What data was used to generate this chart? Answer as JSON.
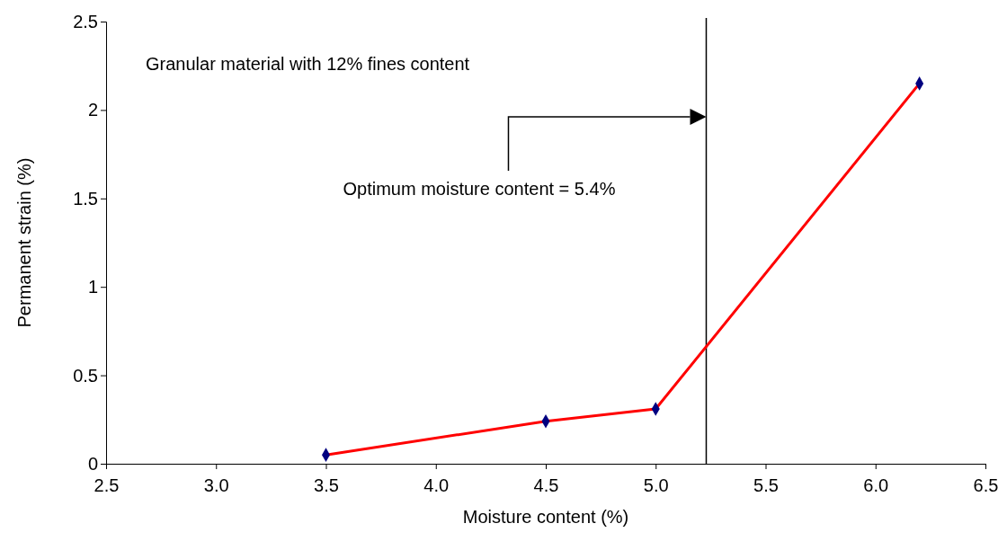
{
  "chart_data": {
    "type": "line",
    "xlabel": "Moisture content (%)",
    "ylabel": "Permanent strain (%)",
    "x": [
      3.5,
      4.5,
      5.0,
      6.2
    ],
    "series": [
      {
        "color": "#ff0000",
        "values": [
          0.05,
          0.24,
          0.31,
          2.15
        ]
      }
    ],
    "marker": "diamond",
    "line_style": "solid",
    "grid": false,
    "xlim": [
      2.5,
      6.5
    ],
    "xticks": [
      2.5,
      {
        "value": 3,
        "label": "3.0"
      },
      3.5,
      {
        "value": 4,
        "label": "4.0"
      },
      4.5,
      {
        "value": 5,
        "label": "5.0"
      },
      5.5,
      {
        "value": 6,
        "label": "6.0"
      },
      6.5
    ],
    "ylim": [
      0,
      2.5
    ],
    "yticks": [
      0,
      0.5,
      1,
      1.5,
      2,
      2.5
    ],
    "ref_lines": [
      {
        "axis": "x",
        "value": 5.23,
        "color": "#000000"
      }
    ],
    "annotations": [
      "Granular material with 12% fines content",
      "Optimum moisture content = 5.4%"
    ]
  }
}
